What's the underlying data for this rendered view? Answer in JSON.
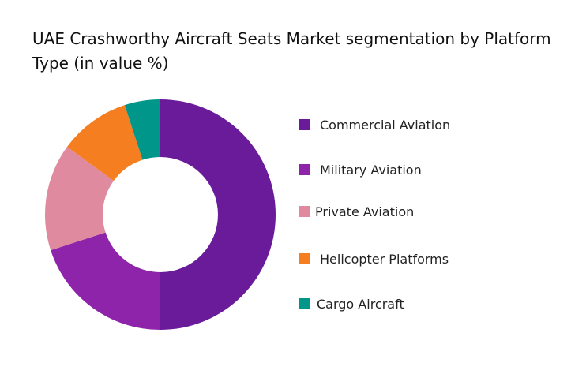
{
  "chart_data": {
    "type": "pie",
    "style": "donut",
    "title": "UAE Crashworthy Aircraft Seats Market segmentation by Platform Type (in value %)",
    "legend_position": "right",
    "categories": [
      "Commercial Aviation",
      "Military Aviation",
      "Private Aviation",
      "Helicopter Platforms",
      "Cargo Aircraft"
    ],
    "values": [
      50,
      20,
      15,
      10,
      5
    ],
    "colors": [
      "#6a1b9a",
      "#8e24aa",
      "#e08aa0",
      "#f57f20",
      "#00968a"
    ]
  }
}
